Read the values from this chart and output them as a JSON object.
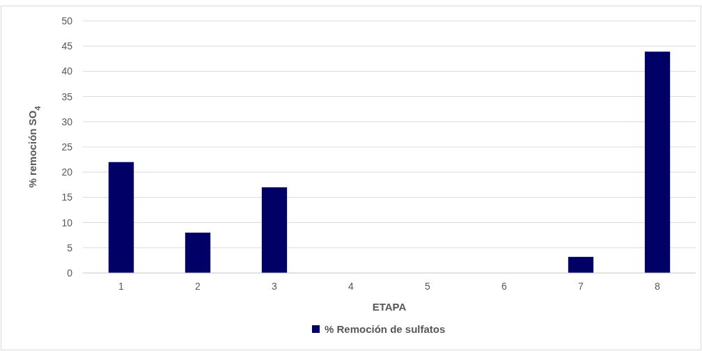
{
  "chart_data": {
    "type": "bar",
    "xlabel": "ETAPA",
    "ylabel": "% remoción SO$_{4}$",
    "categories": [
      "1",
      "2",
      "3",
      "4",
      "5",
      "6",
      "7",
      "8"
    ],
    "series": [
      {
        "name": "% Remoción de sulfatos",
        "color": "#000066",
        "values": [
          22,
          8,
          17,
          0,
          0,
          0,
          3.2,
          43.9
        ]
      }
    ],
    "ylim": [
      0,
      50
    ],
    "yticks": [
      0,
      5,
      10,
      15,
      20,
      25,
      30,
      35,
      40,
      45,
      50
    ],
    "grid": "y",
    "legend": "bottom"
  }
}
